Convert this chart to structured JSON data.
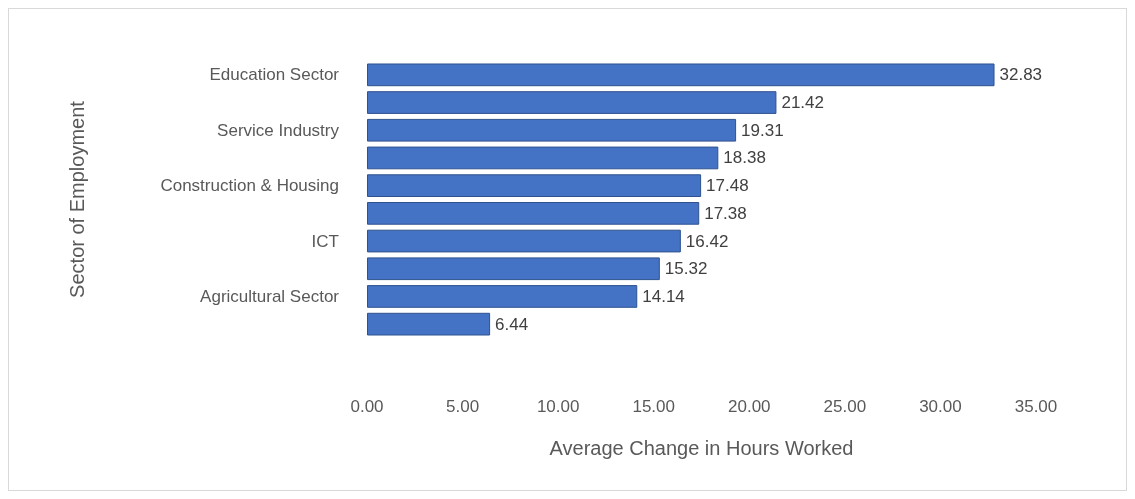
{
  "chart_data": {
    "type": "bar",
    "orientation": "horizontal",
    "xlabel": "Average Change in Hours Worked",
    "ylabel": "Sector of Employment",
    "categories": [
      "Education Sector",
      null,
      "Service Industry",
      null,
      "Construction & Housing",
      null,
      "ICT",
      null,
      "Agricultural Sector",
      null
    ],
    "values": [
      32.83,
      21.42,
      19.31,
      18.38,
      17.48,
      17.38,
      16.42,
      15.32,
      14.14,
      6.44
    ],
    "color": "#4472c4",
    "data_labels": true,
    "xlim": [
      0,
      35
    ],
    "xticks": [
      {
        "value": 0,
        "label": "0.00"
      },
      {
        "value": 5,
        "label": "5.00"
      },
      {
        "value": 10,
        "label": "10.00"
      },
      {
        "value": 15,
        "label": "15.00"
      },
      {
        "value": 20,
        "label": "20.00"
      },
      {
        "value": 25,
        "label": "25.00"
      },
      {
        "value": 30,
        "label": "30.00"
      },
      {
        "value": 35,
        "label": "35.00"
      }
    ]
  }
}
